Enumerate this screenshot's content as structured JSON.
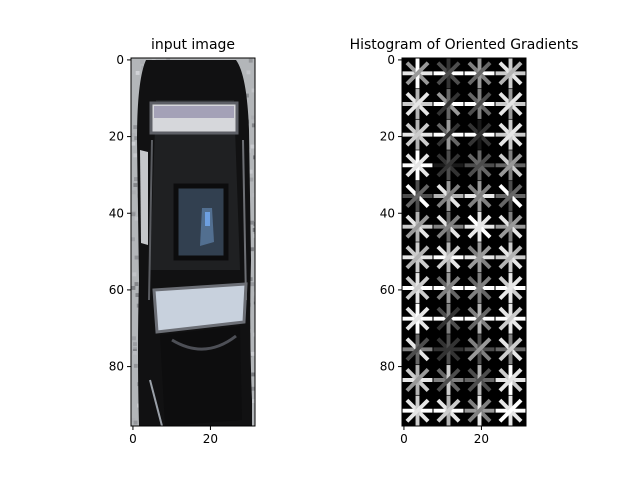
{
  "figure": {
    "background": "#ffffff"
  },
  "chart_data": [
    {
      "type": "image",
      "title": "input image",
      "subject": "top-down photo of a dark car",
      "xlim": [
        0,
        31
      ],
      "ylim": [
        95,
        0
      ],
      "x_ticks": [
        0,
        20
      ],
      "y_ticks": [
        0,
        20,
        40,
        60,
        80
      ],
      "x_tick_labels": [
        "0",
        "20"
      ],
      "y_tick_labels": [
        "0",
        "20",
        "40",
        "60",
        "80"
      ]
    },
    {
      "type": "heatmap",
      "title": "Histogram of Oriented Gradients",
      "colormap": "gray",
      "grid": {
        "cell_rows": 12,
        "cell_cols": 4,
        "cell_size": 8
      },
      "xlim": [
        0,
        31
      ],
      "ylim": [
        95,
        0
      ],
      "x_ticks": [
        0,
        20
      ],
      "y_ticks": [
        0,
        20,
        40,
        60,
        80
      ],
      "x_tick_labels": [
        "0",
        "20"
      ],
      "y_tick_labels": [
        "0",
        "20",
        "40",
        "60",
        "80"
      ],
      "orientation_magnitudes": [
        [
          [
            0.9,
            0.6,
            1.0,
            0.6
          ],
          [
            1.0,
            0.3,
            0.2,
            0.3
          ],
          [
            1.0,
            0.5,
            0.6,
            0.4
          ],
          [
            0.8,
            0.9,
            0.8,
            0.7
          ]
        ],
        [
          [
            0.8,
            0.9,
            0.7,
            0.9
          ],
          [
            1.0,
            0.6,
            0.4,
            0.2
          ],
          [
            1.0,
            0.4,
            0.5,
            0.3
          ],
          [
            0.8,
            0.9,
            0.6,
            0.9
          ]
        ],
        [
          [
            0.9,
            0.8,
            0.7,
            0.8
          ],
          [
            1.0,
            0.4,
            0.6,
            0.2
          ],
          [
            1.0,
            0.2,
            0.1,
            0.2
          ],
          [
            0.8,
            0.9,
            0.8,
            0.9
          ]
        ],
        [
          [
            1.0,
            0.9,
            1.0,
            0.9
          ],
          [
            0.1,
            0.2,
            0.3,
            0.2
          ],
          [
            0.3,
            0.4,
            0.4,
            0.3
          ],
          [
            0.4,
            0.8,
            0.5,
            0.6
          ]
        ],
        [
          [
            0.3,
            1.0,
            0.3,
            0.4
          ],
          [
            0.7,
            0.9,
            0.6,
            0.5
          ],
          [
            0.9,
            0.5,
            0.6,
            0.5
          ],
          [
            0.4,
            1.0,
            0.3,
            0.4
          ]
        ],
        [
          [
            0.8,
            0.9,
            0.7,
            0.6
          ],
          [
            0.5,
            0.9,
            0.4,
            0.5
          ],
          [
            0.9,
            1.0,
            0.9,
            0.9
          ],
          [
            0.6,
            0.9,
            0.5,
            0.6
          ]
        ],
        [
          [
            0.9,
            0.8,
            0.8,
            0.7
          ],
          [
            1.0,
            0.9,
            0.7,
            0.8
          ],
          [
            0.9,
            0.5,
            0.6,
            0.6
          ],
          [
            0.8,
            0.9,
            0.8,
            0.7
          ]
        ],
        [
          [
            1.0,
            0.8,
            0.9,
            0.8
          ],
          [
            1.0,
            0.4,
            0.6,
            0.5
          ],
          [
            1.0,
            0.4,
            0.5,
            0.5
          ],
          [
            1.0,
            0.8,
            0.9,
            0.9
          ]
        ],
        [
          [
            1.0,
            0.9,
            1.0,
            0.9
          ],
          [
            1.0,
            0.3,
            0.5,
            0.2
          ],
          [
            1.0,
            0.5,
            0.7,
            0.4
          ],
          [
            1.0,
            0.9,
            0.9,
            0.8
          ]
        ],
        [
          [
            0.5,
            0.9,
            0.4,
            0.3
          ],
          [
            0.2,
            0.2,
            0.3,
            0.2
          ],
          [
            0.3,
            0.5,
            0.3,
            0.6
          ],
          [
            0.4,
            0.9,
            0.5,
            0.8
          ]
        ],
        [
          [
            0.9,
            0.8,
            0.7,
            0.6
          ],
          [
            0.5,
            0.4,
            0.8,
            0.3
          ],
          [
            0.4,
            0.3,
            0.7,
            0.3
          ],
          [
            0.9,
            0.8,
            1.0,
            0.9
          ]
        ],
        [
          [
            1.0,
            0.9,
            0.8,
            0.9
          ],
          [
            1.0,
            0.9,
            0.7,
            0.8
          ],
          [
            0.6,
            0.5,
            0.9,
            0.5
          ],
          [
            1.0,
            0.9,
            0.9,
            1.0
          ]
        ]
      ]
    }
  ]
}
